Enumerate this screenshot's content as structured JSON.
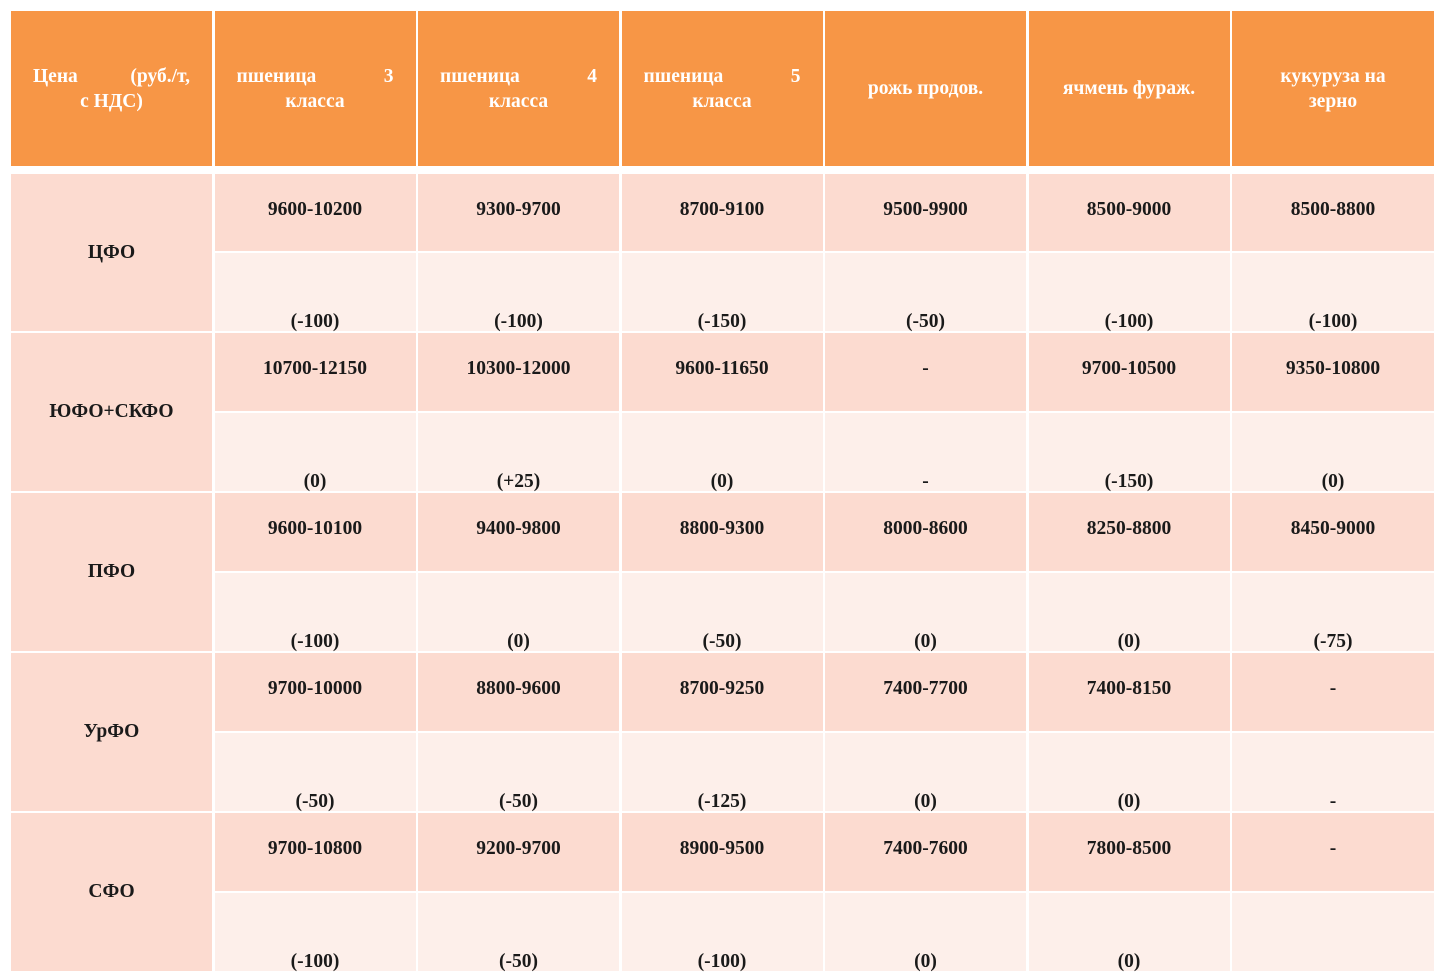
{
  "table": {
    "headers": [
      {
        "line1": "Цена (руб./т,",
        "line2": "с НДС)"
      },
      {
        "line1": "пшеница 3",
        "line2": "класса"
      },
      {
        "line1": "пшеница 4",
        "line2": "класса"
      },
      {
        "line1": "пшеница 5",
        "line2": "класса"
      },
      {
        "line1": "рожь продов.",
        "line2": ""
      },
      {
        "line1": "ячмень фураж.",
        "line2": ""
      },
      {
        "line1": "кукуруза на зерно",
        "line2": ""
      }
    ],
    "rows": [
      {
        "region": "ЦФО",
        "prices": [
          "9600-10200",
          "9300-9700",
          "8700-9100",
          "9500-9900",
          "8500-9000",
          "8500-8800"
        ],
        "changes": [
          "(-100)",
          "(-100)",
          "(-150)",
          "(-50)",
          "(-100)",
          "(-100)"
        ]
      },
      {
        "region": "ЮФО+СКФО",
        "prices": [
          "10700-12150",
          "10300-12000",
          "9600-11650",
          "-",
          "9700-10500",
          "9350-10800"
        ],
        "changes": [
          "(0)",
          "(+25)",
          "(0)",
          "-",
          "(-150)",
          "(0)"
        ]
      },
      {
        "region": "ПФО",
        "prices": [
          "9600-10100",
          "9400-9800",
          "8800-9300",
          "8000-8600",
          "8250-8800",
          "8450-9000"
        ],
        "changes": [
          "(-100)",
          "(0)",
          "(-50)",
          "(0)",
          "(0)",
          "(-75)"
        ]
      },
      {
        "region": "УрФО",
        "prices": [
          "9700-10000",
          "8800-9600",
          "8700-9250",
          "7400-7700",
          "7400-8150",
          "-"
        ],
        "changes": [
          "(-50)",
          "(-50)",
          "(-125)",
          "(0)",
          "(0)",
          "-"
        ]
      },
      {
        "region": "СФО",
        "prices": [
          "9700-10800",
          "9200-9700",
          "8900-9500",
          "7400-7600",
          "7800-8500",
          "-"
        ],
        "changes": [
          "(-100)",
          "(-50)",
          "(-100)",
          "(0)",
          "(0)",
          ""
        ]
      }
    ]
  },
  "colors": {
    "header_bg": "#f79646",
    "price_row_bg": "#fcdbd0",
    "change_row_bg": "#fdefea"
  }
}
